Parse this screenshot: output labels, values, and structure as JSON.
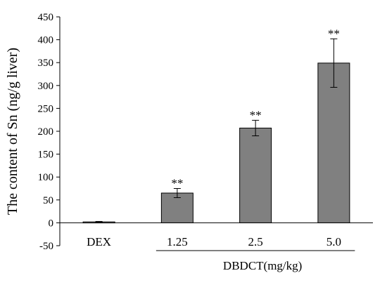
{
  "chart_data": {
    "type": "bar",
    "categories": [
      "DEX",
      "1.25",
      "2.5",
      "5.0"
    ],
    "values": [
      2,
      65,
      207,
      349
    ],
    "error": [
      1,
      10,
      17,
      53
    ],
    "significance": [
      "",
      "**",
      "**",
      "**"
    ],
    "title": "",
    "xlabel": "",
    "ylabel": "The content of Sn (ng/g liver)",
    "group_label": "DBDCT(mg/kg)",
    "group_categories": [
      "1.25",
      "2.5",
      "5.0"
    ],
    "ylim": [
      -50,
      450
    ],
    "yticks": [
      -50,
      0,
      50,
      100,
      150,
      200,
      250,
      300,
      350,
      400,
      450
    ],
    "bar_color": "#808080",
    "grid": false,
    "legend": "none"
  }
}
